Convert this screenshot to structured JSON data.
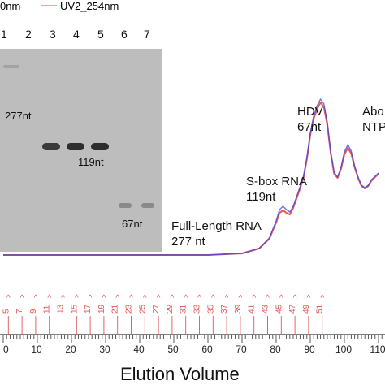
{
  "legend": {
    "series1_label": "0nm",
    "series1_color": "#3b46e6",
    "series2_label": "UV2_254nm",
    "series2_color": "#e03b3b"
  },
  "gel": {
    "lanes": [
      "1",
      "2",
      "3",
      "4",
      "5",
      "6",
      "7"
    ],
    "band_labels": [
      "277nt",
      "119nt",
      "67nt"
    ]
  },
  "annotations": {
    "hdv_line1": "HDV",
    "hdv_line2": "67nt",
    "abo_line1": "Abo",
    "abo_line2": "NTP",
    "sbox_line1": "S-box RNA",
    "sbox_line2": "119nt",
    "full_line1": "Full-Length RNA",
    "full_line2": "277 nt"
  },
  "chart_data": {
    "type": "line",
    "title": "",
    "xlabel": "Elution Volume",
    "ylabel": "",
    "xlim": [
      0,
      110
    ],
    "x_ticks": [
      0,
      10,
      20,
      30,
      40,
      50,
      60,
      70,
      80,
      90,
      100,
      110
    ],
    "x_tick_labels": [
      "0",
      "10",
      "20",
      "30",
      "40",
      "50",
      "60",
      "70",
      "80",
      "90",
      "100",
      "110"
    ],
    "fractions": [
      "5",
      "7",
      "9",
      "11",
      "13",
      "15",
      "17",
      "19",
      "21",
      "23",
      "25",
      "27",
      "29",
      "31",
      "33",
      "35",
      "37",
      "39",
      "41",
      "43",
      "45",
      "47",
      "49",
      "51"
    ],
    "fraction_start_x": 1.5,
    "fraction_step_x": 4,
    "series": [
      {
        "name": "UV2_254nm",
        "x": [
          0,
          60,
          70,
          75,
          78,
          80,
          81,
          82,
          83,
          84,
          85,
          86,
          87,
          88,
          89,
          90,
          91,
          92,
          93,
          94,
          95,
          96,
          97,
          98,
          99,
          100,
          101,
          102,
          103,
          104,
          105,
          106,
          107,
          108,
          110
        ],
        "y": [
          0,
          0,
          2,
          8,
          20,
          40,
          52,
          55,
          52,
          50,
          58,
          70,
          82,
          95,
          118,
          148,
          168,
          180,
          188,
          182,
          160,
          125,
          100,
          95,
          106,
          124,
          132,
          125,
          108,
          95,
          85,
          82,
          85,
          92,
          100
        ]
      },
      {
        "name": "0nm",
        "x": [
          0,
          60,
          70,
          75,
          78,
          80,
          81,
          82,
          83,
          84,
          85,
          86,
          87,
          88,
          89,
          90,
          91,
          92,
          93,
          94,
          95,
          96,
          97,
          98,
          99,
          100,
          101,
          102,
          103,
          104,
          105,
          106,
          107,
          108,
          110
        ],
        "y": [
          0,
          0,
          2,
          8,
          21,
          42,
          56,
          60,
          56,
          53,
          60,
          72,
          84,
          97,
          120,
          150,
          171,
          184,
          192,
          186,
          163,
          127,
          102,
          96,
          108,
          127,
          136,
          128,
          110,
          96,
          86,
          83,
          86,
          93,
          101
        ]
      }
    ]
  }
}
